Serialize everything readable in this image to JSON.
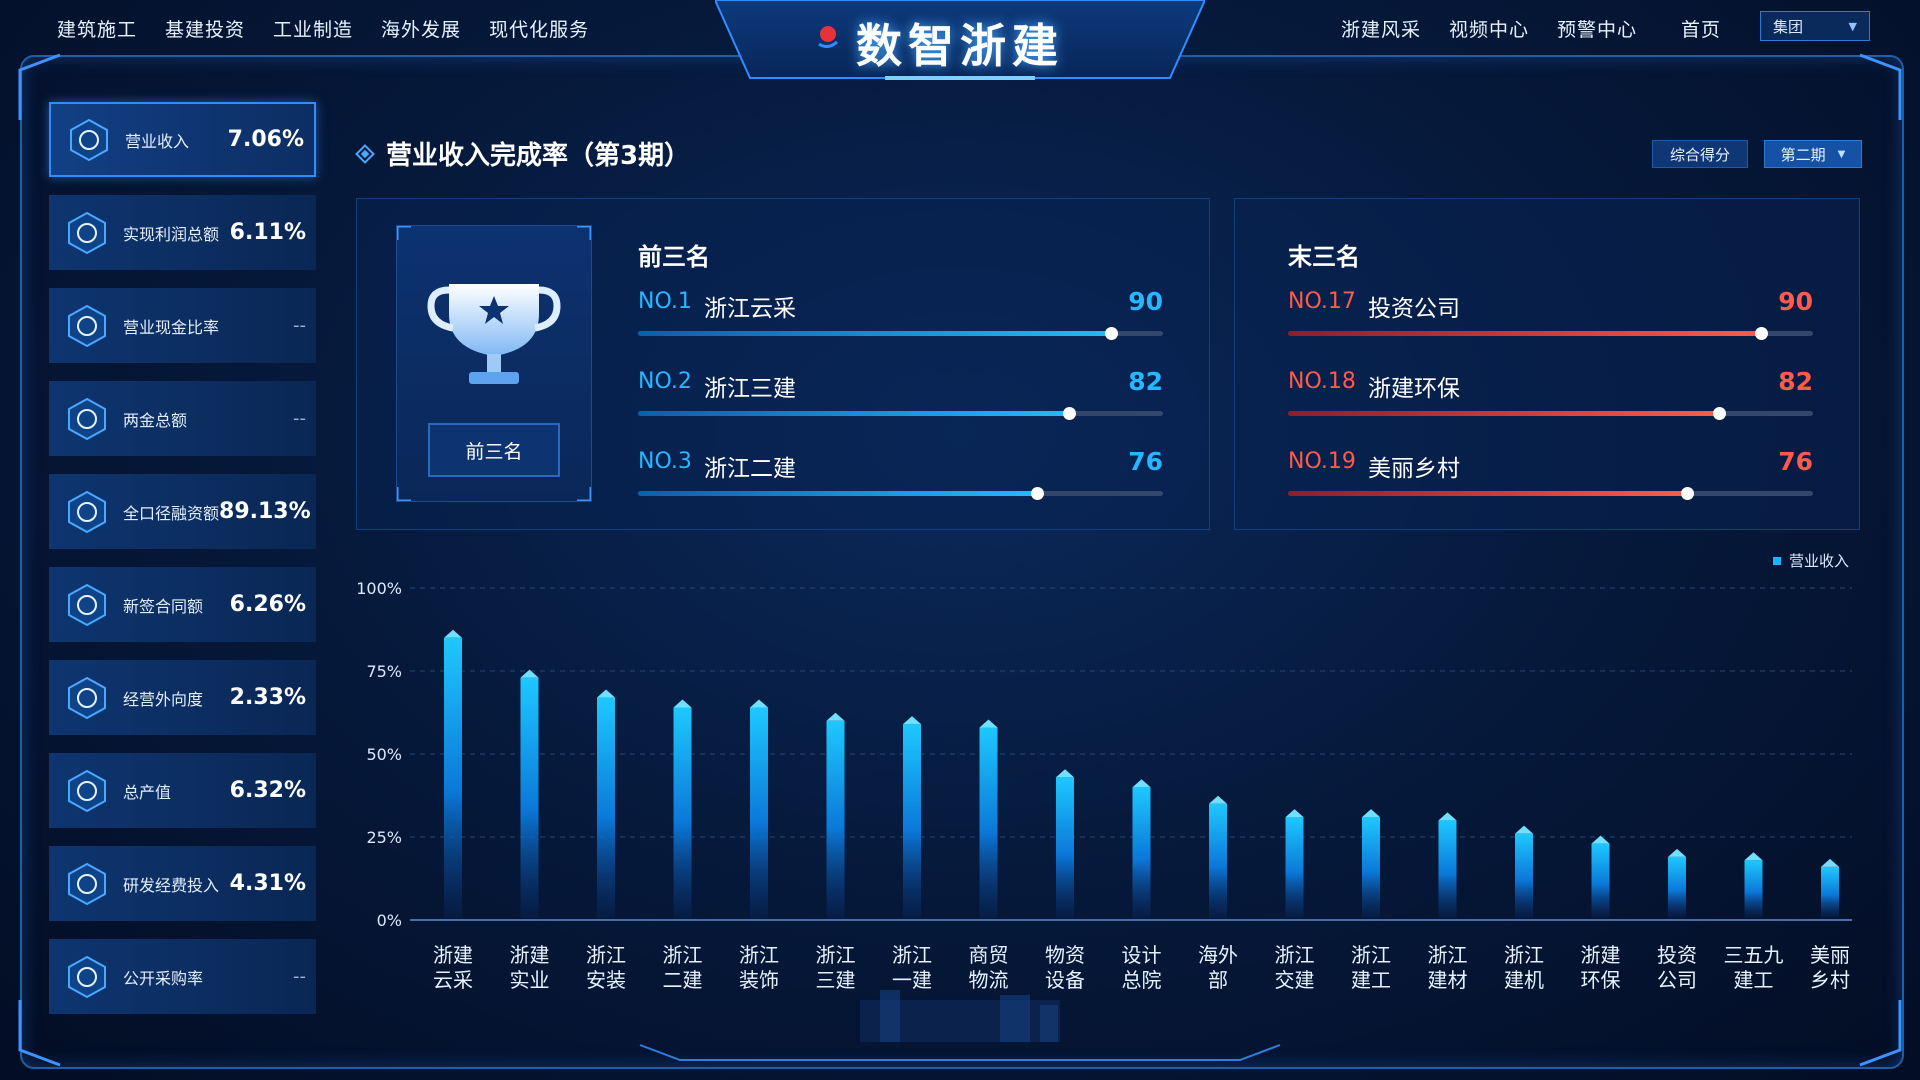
{
  "header": {
    "title": "数智浙建",
    "left_nav": [
      "建筑施工",
      "基建投资",
      "工业制造",
      "海外发展",
      "现代化服务"
    ],
    "right_nav": [
      "浙建风采",
      "视频中心",
      "预警中心",
      "首页"
    ],
    "select_value": "集团"
  },
  "sidebar": {
    "items": [
      {
        "label": "营业收入",
        "value": "7.06%",
        "icon": "yen-coin-icon",
        "active": true
      },
      {
        "label": "实现利润总额",
        "value": "6.11%",
        "icon": "money-bag-icon"
      },
      {
        "label": "营业现金比率",
        "value": "--",
        "icon": "coins-stack-icon"
      },
      {
        "label": "两金总额",
        "value": "--",
        "icon": "coin-database-icon"
      },
      {
        "label": "全口径融资额",
        "value": "89.13%",
        "icon": "finance-diamond-icon"
      },
      {
        "label": "新签合同额",
        "value": "6.26%",
        "icon": "contract-icon"
      },
      {
        "label": "经营外向度",
        "value": "2.33%",
        "icon": "share-network-icon"
      },
      {
        "label": "总产值",
        "value": "6.32%",
        "icon": "bar-growth-icon"
      },
      {
        "label": "研发经费投入",
        "value": "4.31%",
        "icon": "research-gear-icon"
      },
      {
        "label": "公开采购率",
        "value": "--",
        "icon": "cart-icon"
      }
    ]
  },
  "main": {
    "title": "营业收入完成率（第3期）",
    "filter_score": "综合得分",
    "filter_period": "第二期",
    "trophy_button": "前三名",
    "top_heading": "前三名",
    "bottom_heading": "末三名",
    "top_three": [
      {
        "no": "NO.1",
        "name": "浙江云采",
        "score": 90
      },
      {
        "no": "NO.2",
        "name": "浙江三建",
        "score": 82
      },
      {
        "no": "NO.3",
        "name": "浙江二建",
        "score": 76
      }
    ],
    "bottom_three": [
      {
        "no": "NO.17",
        "name": "投资公司",
        "score": 90
      },
      {
        "no": "NO.18",
        "name": "浙建环保",
        "score": 82
      },
      {
        "no": "NO.19",
        "name": "美丽乡村",
        "score": 76
      }
    ]
  },
  "colors": {
    "accent_blue": "#1fb0ff",
    "accent_red": "#ff5a4a",
    "panel_bg": "#0a2754",
    "frame": "#1d5fa8"
  },
  "chart_data": {
    "type": "bar",
    "legend": [
      "营业收入"
    ],
    "legend_position": "top-right",
    "yticks": [
      "100%",
      "75%",
      "50%",
      "25%",
      "0%"
    ],
    "ylim": [
      0,
      100
    ],
    "grid": true,
    "categories": [
      [
        "浙建",
        "云采"
      ],
      [
        "浙建",
        "实业"
      ],
      [
        "浙江",
        "安装"
      ],
      [
        "浙江",
        "二建"
      ],
      [
        "浙江",
        "装饰"
      ],
      [
        "浙江",
        "三建"
      ],
      [
        "浙江",
        "一建"
      ],
      [
        "商贸",
        "物流"
      ],
      [
        "物资",
        "设备"
      ],
      [
        "设计",
        "总院"
      ],
      [
        "海外",
        "部"
      ],
      [
        "浙江",
        "交建"
      ],
      [
        "浙江",
        "建工"
      ],
      [
        "浙江",
        "建材"
      ],
      [
        "浙江",
        "建机"
      ],
      [
        "浙建",
        "环保"
      ],
      [
        "投资",
        "公司"
      ],
      [
        "三五九",
        "建工"
      ],
      [
        "美丽",
        "乡村"
      ]
    ],
    "series": [
      {
        "name": "营业收入",
        "values": [
          85,
          73,
          67,
          64,
          64,
          60,
          59,
          58,
          43,
          40,
          35,
          31,
          31,
          30,
          26,
          23,
          19,
          18,
          16
        ]
      }
    ]
  }
}
